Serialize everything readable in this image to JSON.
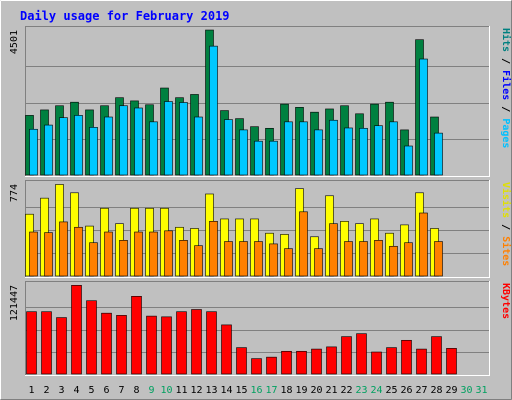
{
  "chart_data": {
    "type": "bar",
    "title": "Daily usage for February 2019",
    "categories": [
      "1",
      "2",
      "3",
      "4",
      "5",
      "6",
      "7",
      "8",
      "9",
      "10",
      "11",
      "12",
      "13",
      "14",
      "15",
      "16",
      "17",
      "18",
      "19",
      "20",
      "21",
      "22",
      "23",
      "24",
      "25",
      "26",
      "27",
      "28",
      "29",
      "30",
      "31"
    ],
    "weekend_days": [
      9,
      10,
      16,
      17,
      23,
      24,
      30,
      31
    ],
    "panels": [
      {
        "id": "pages-files-hits",
        "max_label": "4501",
        "ymax": 4501,
        "side_labels": [
          {
            "text": "Hits",
            "color": "#008080"
          },
          {
            "text": "Files",
            "color": "#0000ff"
          },
          {
            "text": "Pages",
            "color": "#00c0ff"
          }
        ],
        "series": [
          {
            "name": "Hits",
            "color": "#008040",
            "values": [
              1850,
              2020,
              2150,
              2260,
              2020,
              2150,
              2400,
              2300,
              2180,
              2700,
              2400,
              2500,
              4500,
              2000,
              1750,
              1500,
              1450,
              2200,
              2100,
              1950,
              2050,
              2150,
              1900,
              2200,
              2260,
              1400,
              4200,
              1800,
              0,
              0,
              0
            ]
          },
          {
            "name": "Files",
            "color": "#0080ff",
            "values": [
              0,
              0,
              0,
              0,
              0,
              0,
              0,
              0,
              0,
              0,
              0,
              0,
              0,
              0,
              0,
              0,
              0,
              0,
              0,
              0,
              0,
              0,
              0,
              0,
              0,
              0,
              0,
              0,
              0,
              0,
              0
            ]
          },
          {
            "name": "Pages",
            "color": "#00c8ff",
            "values": [
              1420,
              1550,
              1780,
              1850,
              1480,
              1800,
              2150,
              2080,
              1650,
              2280,
              2250,
              1800,
              4000,
              1720,
              1400,
              1050,
              1050,
              1650,
              1650,
              1400,
              1700,
              1460,
              1450,
              1530,
              1650,
              900,
              3600,
              1300,
              0,
              0,
              0
            ]
          }
        ]
      },
      {
        "id": "visits-sites",
        "max_label": "774",
        "ymax": 774,
        "side_labels": [
          {
            "text": "Visits",
            "color": "#e0e000"
          },
          {
            "text": "Sites",
            "color": "#ff8000"
          }
        ],
        "series": [
          {
            "name": "Visits",
            "color": "#ffff00",
            "values": [
              520,
              655,
              770,
              700,
              420,
              570,
              440,
              570,
              570,
              570,
              410,
              400,
              690,
              480,
              480,
              480,
              360,
              350,
              735,
              330,
              675,
              460,
              440,
              480,
              360,
              430,
              700,
              400,
              0,
              0,
              0
            ]
          },
          {
            "name": "Sites",
            "color": "#ff8000",
            "values": [
              370,
              365,
              455,
              410,
              280,
              370,
              300,
              370,
              370,
              380,
              300,
              255,
              460,
              290,
              290,
              290,
              270,
              230,
              540,
              230,
              440,
              290,
              290,
              300,
              250,
              280,
              530,
              290,
              0,
              0,
              0
            ]
          }
        ]
      },
      {
        "id": "kbytes",
        "max_label": "121447",
        "ymax": 121447,
        "side_labels": [
          {
            "text": "KBytes",
            "color": "#ff0000"
          }
        ],
        "series": [
          {
            "name": "KBytes",
            "color": "#ff0000",
            "values": [
              85000,
              85000,
              77000,
              121000,
              100000,
              83000,
              80000,
              106000,
              79000,
              78000,
              85000,
              88000,
              85000,
              67000,
              36000,
              21000,
              23000,
              31000,
              31000,
              34000,
              37000,
              51000,
              55000,
              30000,
              36000,
              46000,
              34000,
              51000,
              35000,
              0,
              0
            ]
          }
        ]
      }
    ]
  }
}
